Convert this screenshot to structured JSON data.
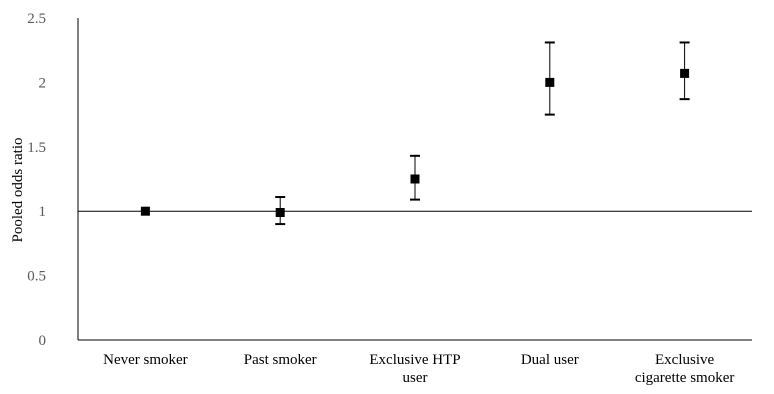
{
  "chart_data": {
    "type": "scatter",
    "title": "",
    "xlabel": "",
    "ylabel": "Pooled odds ratio",
    "ylim": [
      0,
      2.5
    ],
    "yticks": [
      "0",
      "0.5",
      "1",
      "1.5",
      "2",
      "2.5"
    ],
    "grid": false,
    "reference_line": 1,
    "categories": [
      [
        "Never smoker"
      ],
      [
        "Past smoker"
      ],
      [
        "Exclusive HTP",
        "user"
      ],
      [
        "Dual user"
      ],
      [
        "Exclusive",
        "cigarette smoker"
      ]
    ],
    "points": [
      {
        "value": 1.0,
        "low": null,
        "high": null
      },
      {
        "value": 0.99,
        "low": 0.9,
        "high": 1.11
      },
      {
        "value": 1.25,
        "low": 1.09,
        "high": 1.43
      },
      {
        "value": 2.0,
        "low": 1.75,
        "high": 2.31
      },
      {
        "value": 2.07,
        "low": 1.87,
        "high": 2.31
      }
    ],
    "colors": {
      "marker": "#000000",
      "axis": "#000000",
      "tick_text": "#595959"
    }
  }
}
